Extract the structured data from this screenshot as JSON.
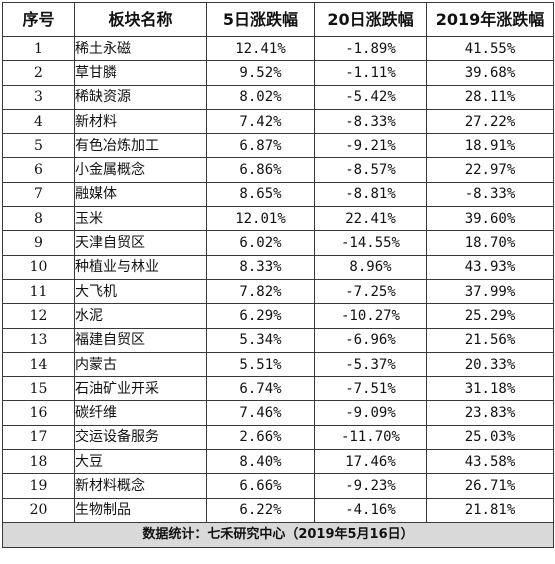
{
  "headers": [
    "序号",
    "板块名称",
    "5日涨跌幅",
    "20日涨跌幅",
    "2019年涨跌幅"
  ],
  "rows": [
    {
      "idx": "1",
      "name": "稀土永磁",
      "d5": "12.41%",
      "d20": "-1.89%",
      "y2019": "41.55%"
    },
    {
      "idx": "2",
      "name": "草甘膦",
      "d5": "9.52%",
      "d20": "-1.11%",
      "y2019": "39.68%"
    },
    {
      "idx": "3",
      "name": "稀缺资源",
      "d5": "8.02%",
      "d20": "-5.42%",
      "y2019": "28.11%"
    },
    {
      "idx": "4",
      "name": "新材料",
      "d5": "7.42%",
      "d20": "-8.33%",
      "y2019": "27.22%"
    },
    {
      "idx": "5",
      "name": "有色冶炼加工",
      "d5": "6.87%",
      "d20": "-9.21%",
      "y2019": "18.91%"
    },
    {
      "idx": "6",
      "name": "小金属概念",
      "d5": "6.86%",
      "d20": "-8.57%",
      "y2019": "22.97%"
    },
    {
      "idx": "7",
      "name": "融媒体",
      "d5": "8.65%",
      "d20": "-8.81%",
      "y2019": "-8.33%"
    },
    {
      "idx": "8",
      "name": "玉米",
      "d5": "12.01%",
      "d20": "22.41%",
      "y2019": "39.60%"
    },
    {
      "idx": "9",
      "name": "天津自贸区",
      "d5": "6.02%",
      "d20": "-14.55%",
      "y2019": "18.70%"
    },
    {
      "idx": "10",
      "name": "种植业与林业",
      "d5": "8.33%",
      "d20": "8.96%",
      "y2019": "43.93%"
    },
    {
      "idx": "11",
      "name": "大飞机",
      "d5": "7.82%",
      "d20": "-7.25%",
      "y2019": "37.99%"
    },
    {
      "idx": "12",
      "name": "水泥",
      "d5": "6.29%",
      "d20": "-10.27%",
      "y2019": "25.29%"
    },
    {
      "idx": "13",
      "name": "福建自贸区",
      "d5": "5.34%",
      "d20": "-6.96%",
      "y2019": "21.56%"
    },
    {
      "idx": "14",
      "name": "内蒙古",
      "d5": "5.51%",
      "d20": "-5.37%",
      "y2019": "20.33%"
    },
    {
      "idx": "15",
      "name": "石油矿业开采",
      "d5": "6.74%",
      "d20": "-7.51%",
      "y2019": "31.18%"
    },
    {
      "idx": "16",
      "name": "碳纤维",
      "d5": "7.46%",
      "d20": "-9.09%",
      "y2019": "23.83%"
    },
    {
      "idx": "17",
      "name": "交运设备服务",
      "d5": "2.66%",
      "d20": "-11.70%",
      "y2019": "25.03%"
    },
    {
      "idx": "18",
      "name": "大豆",
      "d5": "8.40%",
      "d20": "17.46%",
      "y2019": "43.58%"
    },
    {
      "idx": "19",
      "name": "新材料概念",
      "d5": "6.66%",
      "d20": "-9.23%",
      "y2019": "26.71%"
    },
    {
      "idx": "20",
      "name": "生物制品",
      "d5": "6.22%",
      "d20": "-4.16%",
      "y2019": "21.81%"
    }
  ],
  "footer": "数据统计：七禾研究中心（2019年5月16日）"
}
